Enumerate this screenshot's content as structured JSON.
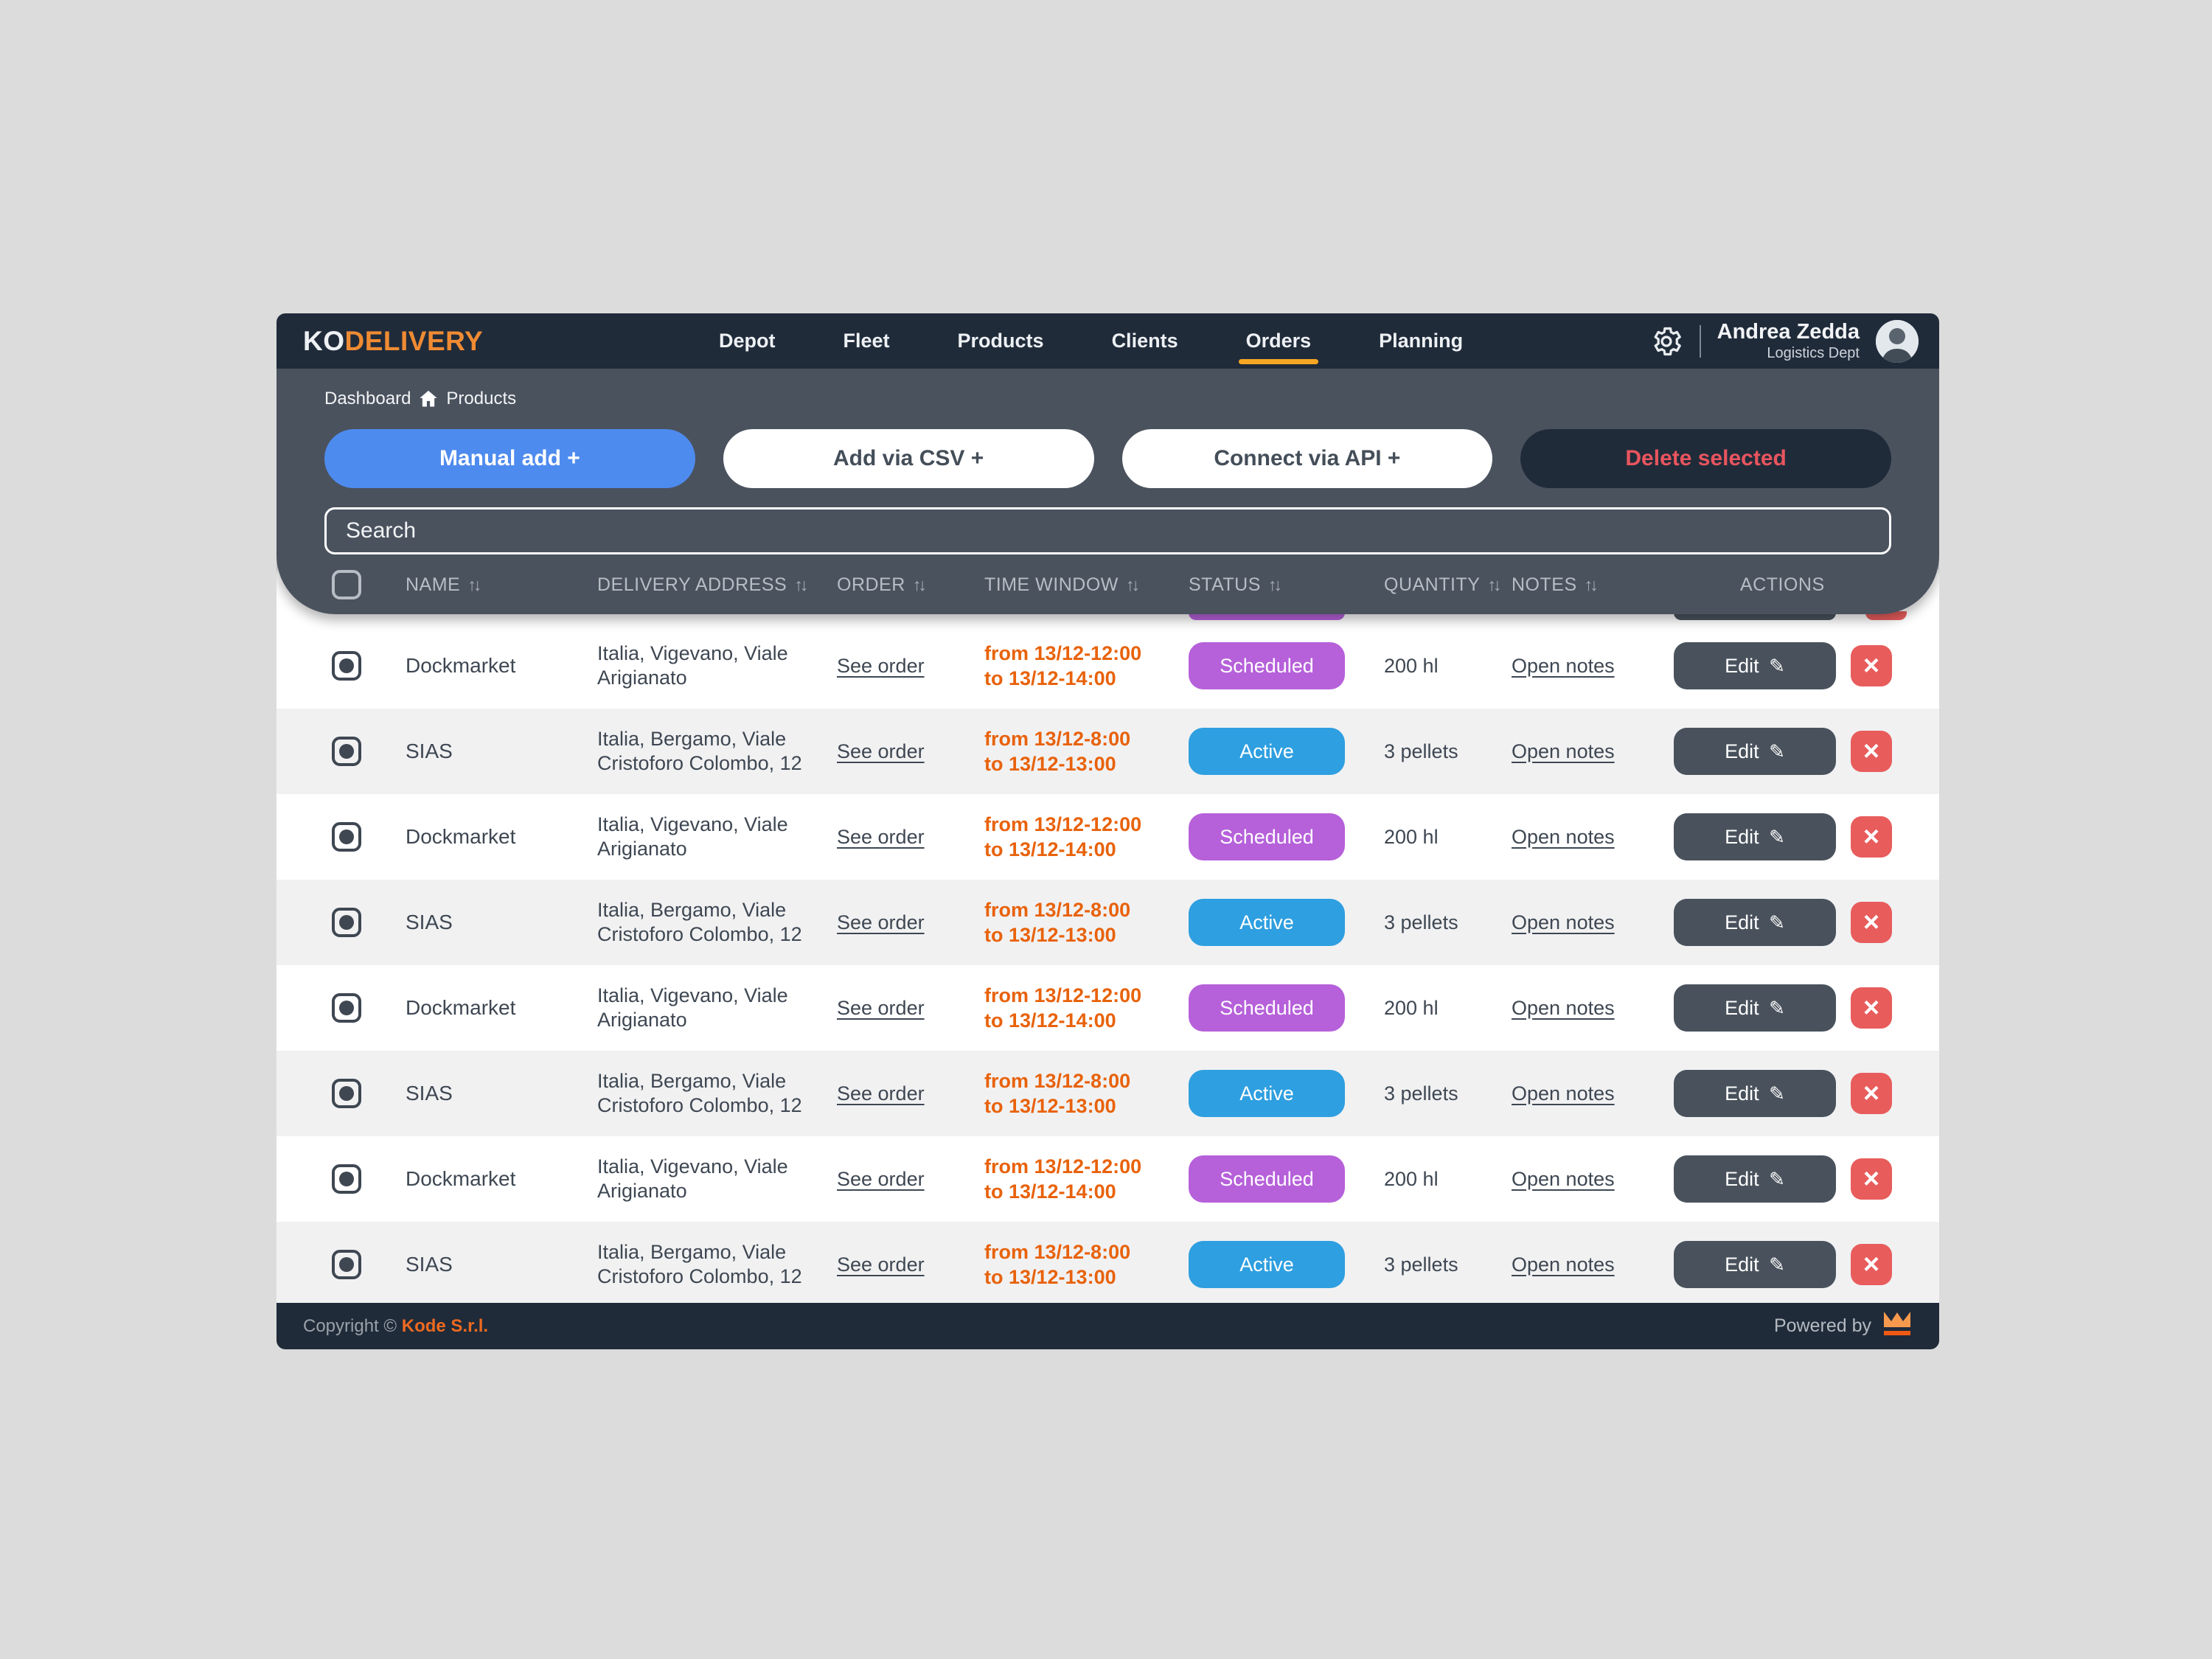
{
  "brand": {
    "logo_ko": "KO",
    "logo_delivery": "DELIVERY"
  },
  "nav": {
    "items": [
      {
        "label": "Depot",
        "active": false
      },
      {
        "label": "Fleet",
        "active": false
      },
      {
        "label": "Products",
        "active": false
      },
      {
        "label": "Clients",
        "active": false
      },
      {
        "label": "Orders",
        "active": true
      },
      {
        "label": "Planning",
        "active": false
      }
    ]
  },
  "user": {
    "name": "Andrea Zedda",
    "dept": "Logistics Dept"
  },
  "breadcrumb": {
    "items": [
      "Dashboard",
      "Products"
    ]
  },
  "toolbar": {
    "buttons": [
      {
        "label": "Manual add +",
        "style": "primary"
      },
      {
        "label": "Add via CSV +",
        "style": "light"
      },
      {
        "label": "Connect via API +",
        "style": "light"
      },
      {
        "label": "Delete selected",
        "style": "danger"
      }
    ]
  },
  "search": {
    "placeholder": "Search"
  },
  "icons": {
    "sort": "↑↓",
    "pencil": "✎",
    "close": "×",
    "settings": "gear",
    "home": "home",
    "crown": "crown"
  },
  "table": {
    "columns": [
      {
        "label": "NAME",
        "sortable": true
      },
      {
        "label": "DELIVERY ADDRESS",
        "sortable": true
      },
      {
        "label": "ORDER",
        "sortable": true
      },
      {
        "label": "TIME WINDOW",
        "sortable": true
      },
      {
        "label": "STATUS",
        "sortable": true
      },
      {
        "label": "QUANTITY",
        "sortable": true
      },
      {
        "label": "NOTES",
        "sortable": true
      },
      {
        "label": "ACTIONS",
        "sortable": false
      }
    ],
    "status_colors": {
      "Scheduled": "#b660da",
      "Active": "#2e9fe0"
    },
    "row_actions": {
      "edit": "Edit"
    },
    "rows": [
      {
        "name": "Dockmarket",
        "address": "Italia, Vigevano, Viale Arigianato",
        "order": "See order",
        "time": [
          "from 13/12-12:00",
          "to 13/12-14:00"
        ],
        "status": "Scheduled",
        "quantity": "200 hl",
        "notes": "Open notes",
        "checked": true
      },
      {
        "name": "SIAS",
        "address": "Italia, Bergamo, Viale Cristoforo Colombo, 12",
        "order": "See order",
        "time": [
          "from 13/12-8:00",
          "to 13/12-13:00"
        ],
        "status": "Active",
        "quantity": "3 pellets",
        "notes": "Open notes",
        "checked": true
      },
      {
        "name": "Dockmarket",
        "address": "Italia, Vigevano, Viale Arigianato",
        "order": "See order",
        "time": [
          "from 13/12-12:00",
          "to 13/12-14:00"
        ],
        "status": "Scheduled",
        "quantity": "200 hl",
        "notes": "Open notes",
        "checked": true
      },
      {
        "name": "SIAS",
        "address": "Italia, Bergamo, Viale Cristoforo Colombo, 12",
        "order": "See order",
        "time": [
          "from 13/12-8:00",
          "to 13/12-13:00"
        ],
        "status": "Active",
        "quantity": "3 pellets",
        "notes": "Open notes",
        "checked": true
      },
      {
        "name": "Dockmarket",
        "address": "Italia, Vigevano, Viale Arigianato",
        "order": "See order",
        "time": [
          "from 13/12-12:00",
          "to 13/12-14:00"
        ],
        "status": "Scheduled",
        "quantity": "200 hl",
        "notes": "Open notes",
        "checked": true
      },
      {
        "name": "SIAS",
        "address": "Italia, Bergamo, Viale Cristoforo Colombo, 12",
        "order": "See order",
        "time": [
          "from 13/12-8:00",
          "to 13/12-13:00"
        ],
        "status": "Active",
        "quantity": "3 pellets",
        "notes": "Open notes",
        "checked": true
      },
      {
        "name": "Dockmarket",
        "address": "Italia, Vigevano, Viale Arigianato",
        "order": "See order",
        "time": [
          "from 13/12-12:00",
          "to 13/12-14:00"
        ],
        "status": "Scheduled",
        "quantity": "200 hl",
        "notes": "Open notes",
        "checked": true
      },
      {
        "name": "SIAS",
        "address": "Italia, Bergamo, Viale Cristoforo Colombo, 12",
        "order": "See order",
        "time": [
          "from 13/12-8:00",
          "to 13/12-13:00"
        ],
        "status": "Active",
        "quantity": "3 pellets",
        "notes": "Open notes",
        "checked": true
      }
    ]
  },
  "footer": {
    "copyright_prefix": "Copyright © ",
    "company": "Kode S.r.l.",
    "powered_by": "Powered by"
  },
  "colors": {
    "navbar": "#202b3a",
    "panel": "#4a525e",
    "accent_orange": "#f5a623",
    "brand_orange": "#ef8b33",
    "time_orange": "#e8620b",
    "primary_blue": "#4e8bee",
    "danger_red": "#e8555e",
    "badge_scheduled": "#b660da",
    "badge_active": "#2e9fe0",
    "row_alt": "#f1f1f2",
    "page_bg": "#dcdcdc"
  }
}
